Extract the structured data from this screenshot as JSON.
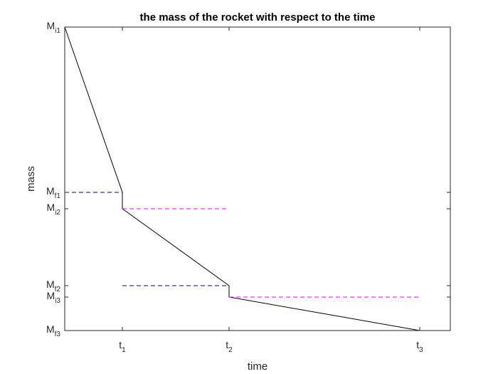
{
  "chart_data": {
    "type": "line",
    "title": "the mass of the rocket with respect to the time",
    "xlabel": "time",
    "ylabel": "mass",
    "x_ticks": [
      {
        "base": "t",
        "sub": "1"
      },
      {
        "base": "t",
        "sub": "2"
      },
      {
        "base": "t",
        "sub": "3"
      }
    ],
    "y_ticks": [
      {
        "base": "M",
        "sub": "i1"
      },
      {
        "base": "M",
        "sub": "f1"
      },
      {
        "base": "M",
        "sub": "i2"
      },
      {
        "base": "M",
        "sub": "f2"
      },
      {
        "base": "M",
        "sub": "i3"
      },
      {
        "base": "M",
        "sub": "f3"
      }
    ],
    "series": [
      {
        "color": "#000000",
        "style": "solid",
        "points": [
          [
            "0",
            "Mi1"
          ],
          [
            "t1",
            "Mf1"
          ],
          [
            "t1",
            "Mi2"
          ],
          [
            "t2",
            "Mf2"
          ],
          [
            "t2",
            "Mi3"
          ],
          [
            "t3",
            "Mf3"
          ]
        ]
      },
      {
        "color": "#00007f",
        "style": "dashed",
        "points": [
          [
            "0",
            "Mf1"
          ],
          [
            "t1",
            "Mf1"
          ]
        ]
      },
      {
        "color": "#00007f",
        "style": "dashed",
        "points": [
          [
            "t1",
            "Mf2"
          ],
          [
            "t2",
            "Mf2"
          ]
        ]
      },
      {
        "color": "#ff00ff",
        "style": "dashed",
        "points": [
          [
            "t1",
            "Mi2"
          ],
          [
            "t2",
            "Mi2"
          ]
        ]
      },
      {
        "color": "#ff00ff",
        "style": "dashed",
        "points": [
          [
            "t2",
            "Mi3"
          ],
          [
            "t3",
            "Mi3"
          ]
        ]
      }
    ],
    "grid": false,
    "box": true
  }
}
